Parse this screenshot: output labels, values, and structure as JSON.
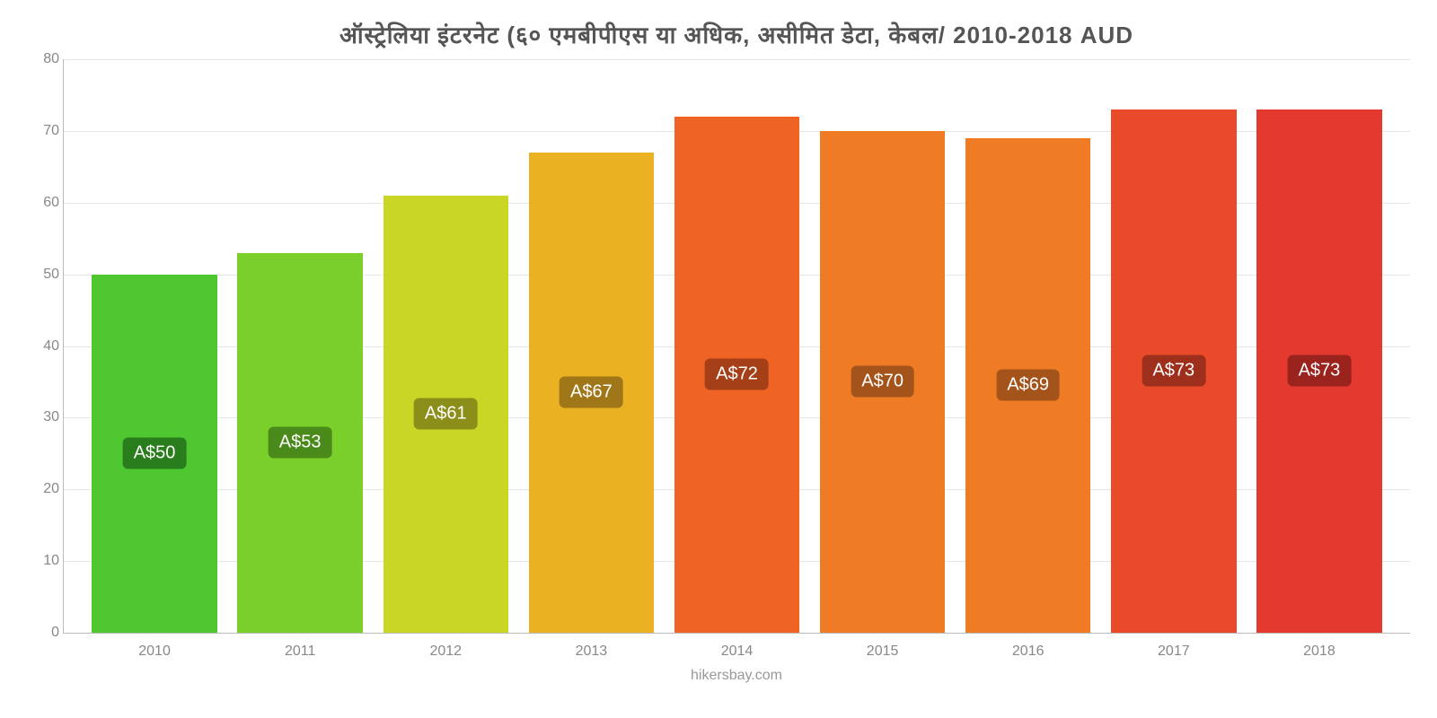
{
  "chart": {
    "type": "bar",
    "title": "ऑस्ट्रेलिया   इंटरनेट   (६०   एमबीपीएस   या   अधिक, असीमित   डेटा, केबल/ 2010-2018 AUD",
    "title_fontsize": 26,
    "title_color": "#555555",
    "attribution": "hikersbay.com",
    "attribution_color": "#999999",
    "background_color": "#ffffff",
    "grid_color": "#e6e6e6",
    "axis_color": "#bbbbbb",
    "tick_color": "#888888",
    "tick_fontsize": 16,
    "ymin": 0,
    "ymax": 80,
    "ytick_step": 10,
    "yticks": [
      0,
      10,
      20,
      30,
      40,
      50,
      60,
      70,
      80
    ],
    "categories": [
      "2010",
      "2011",
      "2012",
      "2013",
      "2014",
      "2015",
      "2016",
      "2017",
      "2018"
    ],
    "values": [
      50,
      53,
      61,
      67,
      72,
      70,
      69,
      73,
      73
    ],
    "value_labels": [
      "A$50",
      "A$53",
      "A$61",
      "A$67",
      "A$72",
      "A$70",
      "A$69",
      "A$73",
      "A$73"
    ],
    "bar_colors": [
      "#4fc731",
      "#7acf2a",
      "#c9d626",
      "#eab222",
      "#ef6325",
      "#ef7b25",
      "#ef7b25",
      "#e94b2a",
      "#e4392e"
    ],
    "label_bg_colors": [
      "#2a7d1c",
      "#4a8a1a",
      "#8c8e1a",
      "#a07718",
      "#a43f18",
      "#a4531a",
      "#a4531a",
      "#9e2f1c",
      "#9a231e"
    ],
    "label_fontsize": 20,
    "label_text_color": "#ffffff",
    "bar_width_pct": 86
  }
}
